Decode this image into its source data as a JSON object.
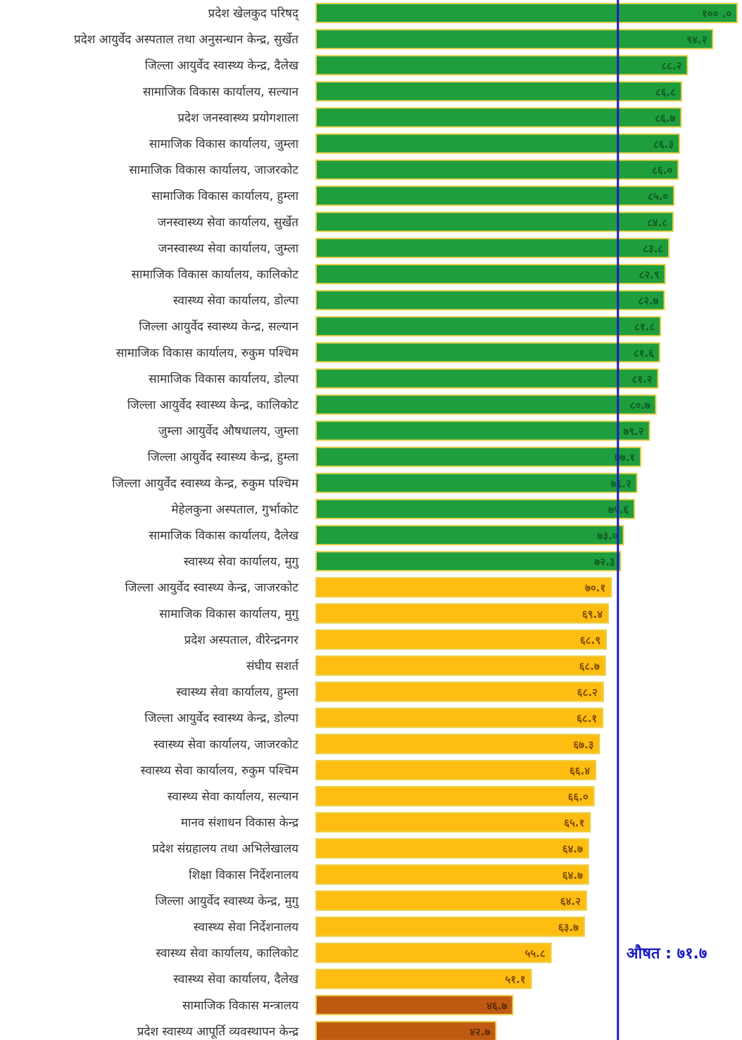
{
  "chart_data": {
    "type": "bar",
    "orientation": "horizontal",
    "xlim": [
      0,
      100
    ],
    "grid": false,
    "legend": "none",
    "average": {
      "value": 71.7,
      "label": "औषत : ७१.७",
      "color": "#1a1ac8"
    },
    "categories": [
      "प्रदेश खेलकुद परिषद्",
      "प्रदेश आयुर्वेद अस्पताल तथा अनुसन्धान केन्द्र, सुर्खेत",
      "जिल्ला आयुर्वेद स्वास्थ्य केन्द्र, दैलेख",
      "सामाजिक विकास कार्यालय, सल्यान",
      "प्रदेश जनस्वास्थ्य प्रयोगशाला",
      "सामाजिक विकास कार्यालय, जुम्ला",
      "सामाजिक विकास कार्यालय, जाजरकोट",
      "सामाजिक विकास कार्यालय, हुम्ला",
      "जनस्वास्थ्य सेवा कार्यालय, सुर्खेत",
      "जनस्वास्थ्य सेवा कार्यालय, जुम्ला",
      "सामाजिक विकास कार्यालय, कालिकोट",
      "स्वास्थ्य सेवा कार्यालय, डोल्पा",
      "जिल्ला आयुर्वेद स्वास्थ्य केन्द्र, सल्यान",
      "सामाजिक विकास कार्यालय, रुकुम पश्चिम",
      "सामाजिक विकास कार्यालय, डोल्पा",
      "जिल्ला आयुर्वेद स्वास्थ्य केन्द्र, कालिकोट",
      "जुम्ला आयुर्वेद औषधालय, जुम्ला",
      "जिल्ला आयुर्वेद स्वास्थ्य केन्द्र, हुम्ला",
      "जिल्ला आयुर्वेद स्वास्थ्य केन्द्र, रुकुम पश्चिम",
      "मेहेलकुना अस्पताल, गुर्भाकोट",
      "सामाजिक विकास कार्यालय, दैलेख",
      "स्वास्थ्य सेवा कार्यालय, मुगु",
      "जिल्ला आयुर्वेद स्वास्थ्य केन्द्र, जाजरकोट",
      "सामाजिक विकास कार्यालय, मुगु",
      "प्रदेश अस्पताल, वीरेन्द्रनगर",
      "संघीय सशर्त",
      "स्वास्थ्य सेवा कार्यालय, हुम्ला",
      "जिल्ला आयुर्वेद स्वास्थ्य केन्द्र, डोल्पा",
      "स्वास्थ्य सेवा कार्यालय, जाजरकोट",
      "स्वास्थ्य सेवा कार्यालय, रुकुम पश्चिम",
      "स्वास्थ्य सेवा कार्यालय, सल्यान",
      "मानव संशाधन विकास केन्द्र",
      "प्रदेश संग्रहालय तथा अभिलेखालय",
      "शिक्षा विकास निर्देशनालय",
      "जिल्ला आयुर्वेद स्वास्थ्य केन्द्र, मुगु",
      "स्वास्थ्य सेवा निर्देशनालय",
      "स्वास्थ्य सेवा कार्यालय, कालिकोट",
      "स्वास्थ्य सेवा कार्यालय, दैलेख",
      "सामाजिक विकास मन्त्रालय",
      "प्रदेश स्वास्थ्य आपूर्ति व्यवस्थापन केन्द्र"
    ],
    "values": [
      100.0,
      94.2,
      88.2,
      86.8,
      86.7,
      86.3,
      86.0,
      85.0,
      84.8,
      83.8,
      82.9,
      82.7,
      81.8,
      81.6,
      81.2,
      80.7,
      79.2,
      77.1,
      76.2,
      75.6,
      73.0,
      72.3,
      70.1,
      69.4,
      68.9,
      68.7,
      68.2,
      68.1,
      67.3,
      66.4,
      66.0,
      65.1,
      64.7,
      64.7,
      64.2,
      63.7,
      55.8,
      51.1,
      46.7,
      42.7
    ],
    "value_labels": [
      "१०० .०",
      "९४.२",
      "८८.२",
      "८६.८",
      "८६.७",
      "८६.३",
      "८६.०",
      "८५.०",
      "८४.८",
      "८३.८",
      "८२.९",
      "८२.७",
      "८१.८",
      "८१.६",
      "८१.२",
      "८०.७",
      "७९.२",
      "७७.१",
      "७६.२",
      "७५.६",
      "७३.०",
      "७२.३",
      "७०.१",
      "६९.४",
      "६८.९",
      "६८.७",
      "६८.२",
      "६८.१",
      "६७.३",
      "६६.४",
      "६६.०",
      "६५.१",
      "६४.७",
      "६४.७",
      "६४.२",
      "६३.७",
      "५५.८",
      "५१.१",
      "४६.७",
      "४२.७"
    ],
    "tiers": [
      "green",
      "green",
      "green",
      "green",
      "green",
      "green",
      "green",
      "green",
      "green",
      "green",
      "green",
      "green",
      "green",
      "green",
      "green",
      "green",
      "green",
      "green",
      "green",
      "green",
      "green",
      "green",
      "orange",
      "orange",
      "orange",
      "orange",
      "orange",
      "orange",
      "orange",
      "orange",
      "orange",
      "orange",
      "orange",
      "orange",
      "orange",
      "orange",
      "orange",
      "orange",
      "brown",
      "brown"
    ],
    "colors": {
      "green": "#1f9e3e",
      "orange": "#ffbd12",
      "brown": "#c05a12",
      "bar_border": "#e8d14a",
      "label_text_green": "#0e5a22",
      "label_text_orange": "#7a4a00",
      "label_text_brown": "#5a2a05"
    }
  }
}
